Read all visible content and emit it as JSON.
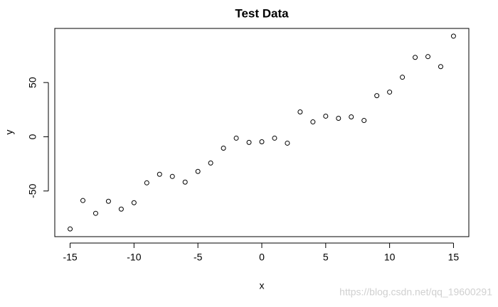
{
  "chart_data": {
    "type": "scatter",
    "title": "Test Data",
    "x_label": "x",
    "y_label": "y",
    "x": [
      -15,
      -14,
      -13,
      -12,
      -11,
      -10,
      -9,
      -8,
      -7,
      -6,
      -5,
      -4,
      -3,
      -2,
      -1,
      0,
      1,
      2,
      3,
      4,
      5,
      6,
      7,
      8,
      9,
      10,
      11,
      12,
      13,
      14,
      15
    ],
    "values": [
      -85,
      -58.8,
      -70.6,
      -59.5,
      -66.7,
      -60.8,
      -42.5,
      -34.6,
      -36.6,
      -41.8,
      -32,
      -24.2,
      -10.5,
      -1.3,
      -5.2,
      -4.6,
      -1.3,
      -5.9,
      22.9,
      13.7,
      19,
      17,
      18.3,
      15,
      37.9,
      41.2,
      54.9,
      73.2,
      73.9,
      64.7,
      92.8
    ],
    "color": "#000000",
    "xlim": [
      -16.2,
      16.2
    ],
    "ylim": [
      -92.1,
      99.9
    ],
    "xticks": [
      -15,
      -10,
      -5,
      0,
      5,
      10,
      15
    ],
    "yticks": [
      -50,
      0,
      50
    ],
    "watermark": "https://blog.csdn.net/qq_19600291"
  }
}
